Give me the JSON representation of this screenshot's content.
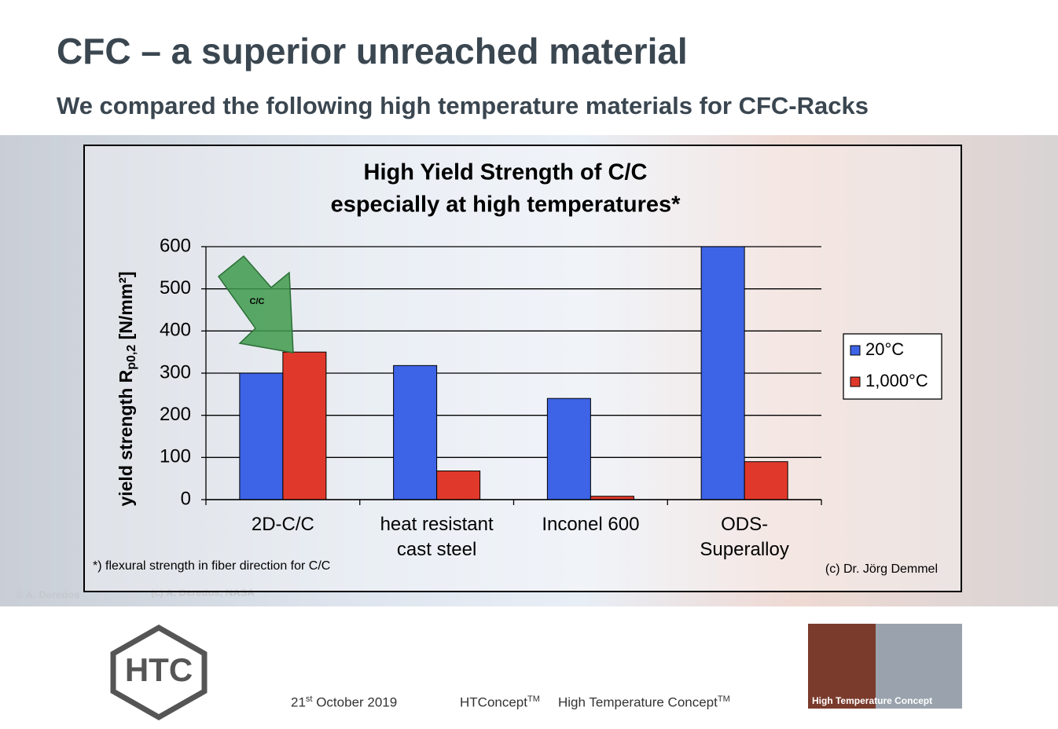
{
  "slide": {
    "title": "CFC – a superior unreached material",
    "subtitle": "We compared the following high temperature materials for CFC-Racks",
    "photo_credits": [
      "© A. Deredos",
      "(c) A. Deredos, NASA"
    ],
    "logo": "HTC",
    "footer_date": [
      "21",
      "st",
      " October 2019"
    ],
    "footer_brand": [
      "HTConcept",
      "TM"
    ],
    "footer_name": [
      "High Temperature Concept",
      "TM"
    ],
    "photo_caption": "High Temperature Concept"
  },
  "chart_data": {
    "type": "bar",
    "title": "High Yield Strength of C/C",
    "subtitle": "especially at high temperatures*",
    "y_label": [
      "yield strength R",
      "p0,2",
      " [N/mm²]"
    ],
    "categories": [
      "2D-C/C",
      "heat resistant cast steel",
      "Inconel 600",
      "ODS-Superalloy"
    ],
    "series": [
      {
        "name": "20°C",
        "color": "#3d63e6",
        "values": [
          300,
          318,
          240,
          600
        ]
      },
      {
        "name": "1,000°C",
        "color": "#e0392b",
        "values": [
          350,
          68,
          8,
          90
        ]
      }
    ],
    "ylim": [
      0,
      600
    ],
    "yticks": [
      0,
      100,
      200,
      300,
      400,
      500,
      600
    ],
    "grid": true,
    "legend": "right",
    "annotation": "C/C",
    "footnote": "*) flexural strength in fiber direction for C/C",
    "credit": "(c) Dr. Jörg Demmel"
  }
}
